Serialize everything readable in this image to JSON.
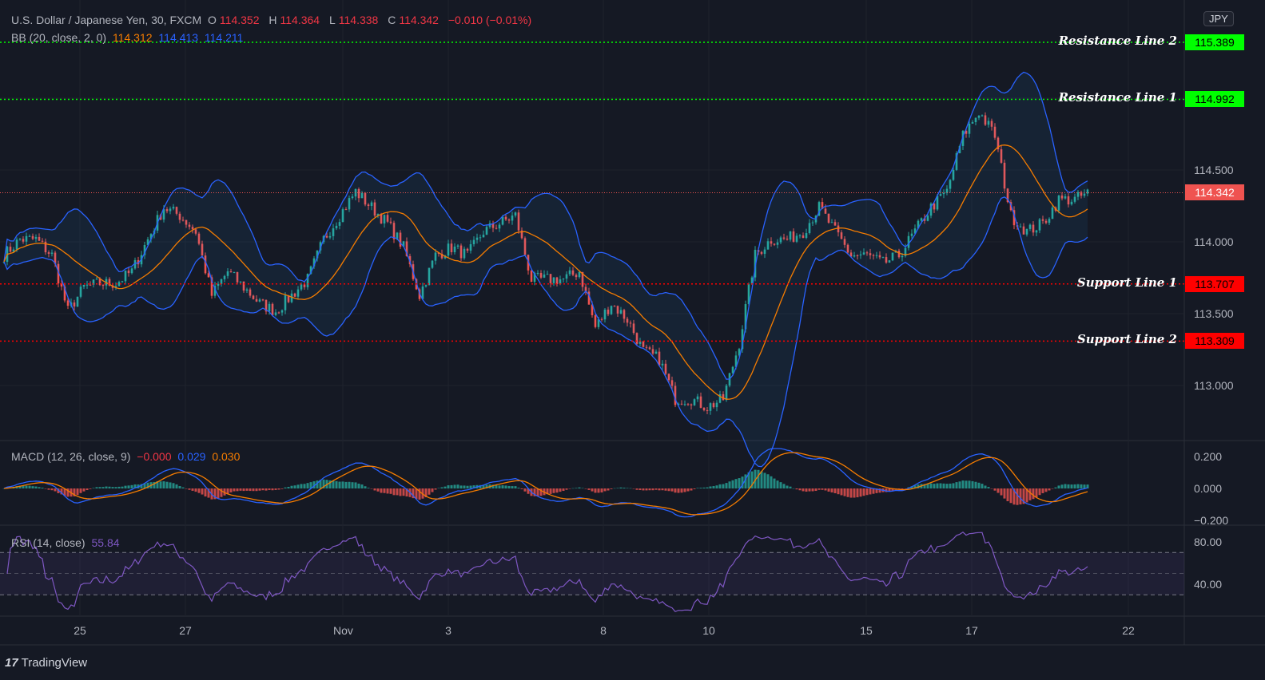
{
  "header": {
    "title": "U.S. Dollar / Japanese Yen, 30, FXCM",
    "o_label": "O",
    "o": "114.352",
    "h_label": "H",
    "h": "114.364",
    "l_label": "L",
    "l": "114.338",
    "c_label": "C",
    "c": "114.342",
    "change": "−0.010 (−0.01%)"
  },
  "bb_legend": {
    "label": "BB (20, close, 2, 0)",
    "basis": "114.312",
    "upper": "114.413",
    "lower": "114.211"
  },
  "macd_legend": {
    "label": "MACD (12, 26, close, 9)",
    "hist": "−0.000",
    "macd": "0.029",
    "signal": "0.030"
  },
  "rsi_legend": {
    "label": "RSI (14, close)",
    "value": "55.84"
  },
  "currency": "JPY",
  "brand": "TradingView",
  "chart_data": {
    "type": "candlestick",
    "symbol": "USDJPY",
    "colors": {
      "up": "#26a69a",
      "down": "#ef5350",
      "bb_upper_lower": "#2962ff",
      "bb_basis": "#f57c00",
      "macd": "#2962ff",
      "signal": "#f57c00",
      "rsi": "#7e57c2",
      "support": "#ff0000",
      "resistance": "#00ff00"
    },
    "approx_close": [
      113.906,
      114.017,
      114.017,
      113.906,
      113.517,
      113.683,
      113.711,
      113.711,
      113.794,
      114.017,
      114.239,
      114.183,
      114.072,
      113.628,
      113.794,
      113.683,
      113.572,
      113.517,
      113.628,
      113.739,
      114.017,
      114.183,
      114.35,
      114.239,
      114.128,
      113.961,
      113.628,
      113.906,
      113.961,
      113.906,
      114.072,
      114.128,
      114.183,
      113.739,
      113.739,
      113.739,
      113.794,
      113.406,
      113.572,
      113.461,
      113.239,
      113.183,
      112.906,
      112.906,
      112.85,
      112.906,
      113.294,
      113.906,
      114.017,
      114.017,
      114.072,
      114.239,
      114.072,
      113.906,
      113.906,
      113.85,
      113.906,
      114.072,
      114.239,
      114.35,
      114.739,
      114.906,
      114.739,
      114.183,
      114.072,
      114.128,
      114.294,
      114.294,
      114.35
    ],
    "price_axis": {
      "ticks": [
        "115.000",
        "114.500",
        "114.000",
        "113.500",
        "113.000"
      ],
      "range": [
        112.6,
        115.5
      ]
    },
    "levels": [
      {
        "name": "Resistance Line 2",
        "value": "115.389",
        "kind": "resistance"
      },
      {
        "name": "Resistance Line 1",
        "value": "114.992",
        "kind": "resistance"
      },
      {
        "name": "Support Line 1",
        "value": "113.707",
        "kind": "support"
      },
      {
        "name": "Support Line 2",
        "value": "113.309",
        "kind": "support"
      }
    ],
    "last_price": "114.342",
    "macd_axis": {
      "ticks": [
        "0.200",
        "0.000",
        "−0.200"
      ]
    },
    "rsi_axis": {
      "ticks": [
        "80.00",
        "40.00"
      ],
      "bands": [
        70,
        50,
        30
      ]
    },
    "x_ticks": [
      "25",
      "27",
      "Nov",
      "3",
      "8",
      "10",
      "15",
      "17",
      "22"
    ]
  }
}
